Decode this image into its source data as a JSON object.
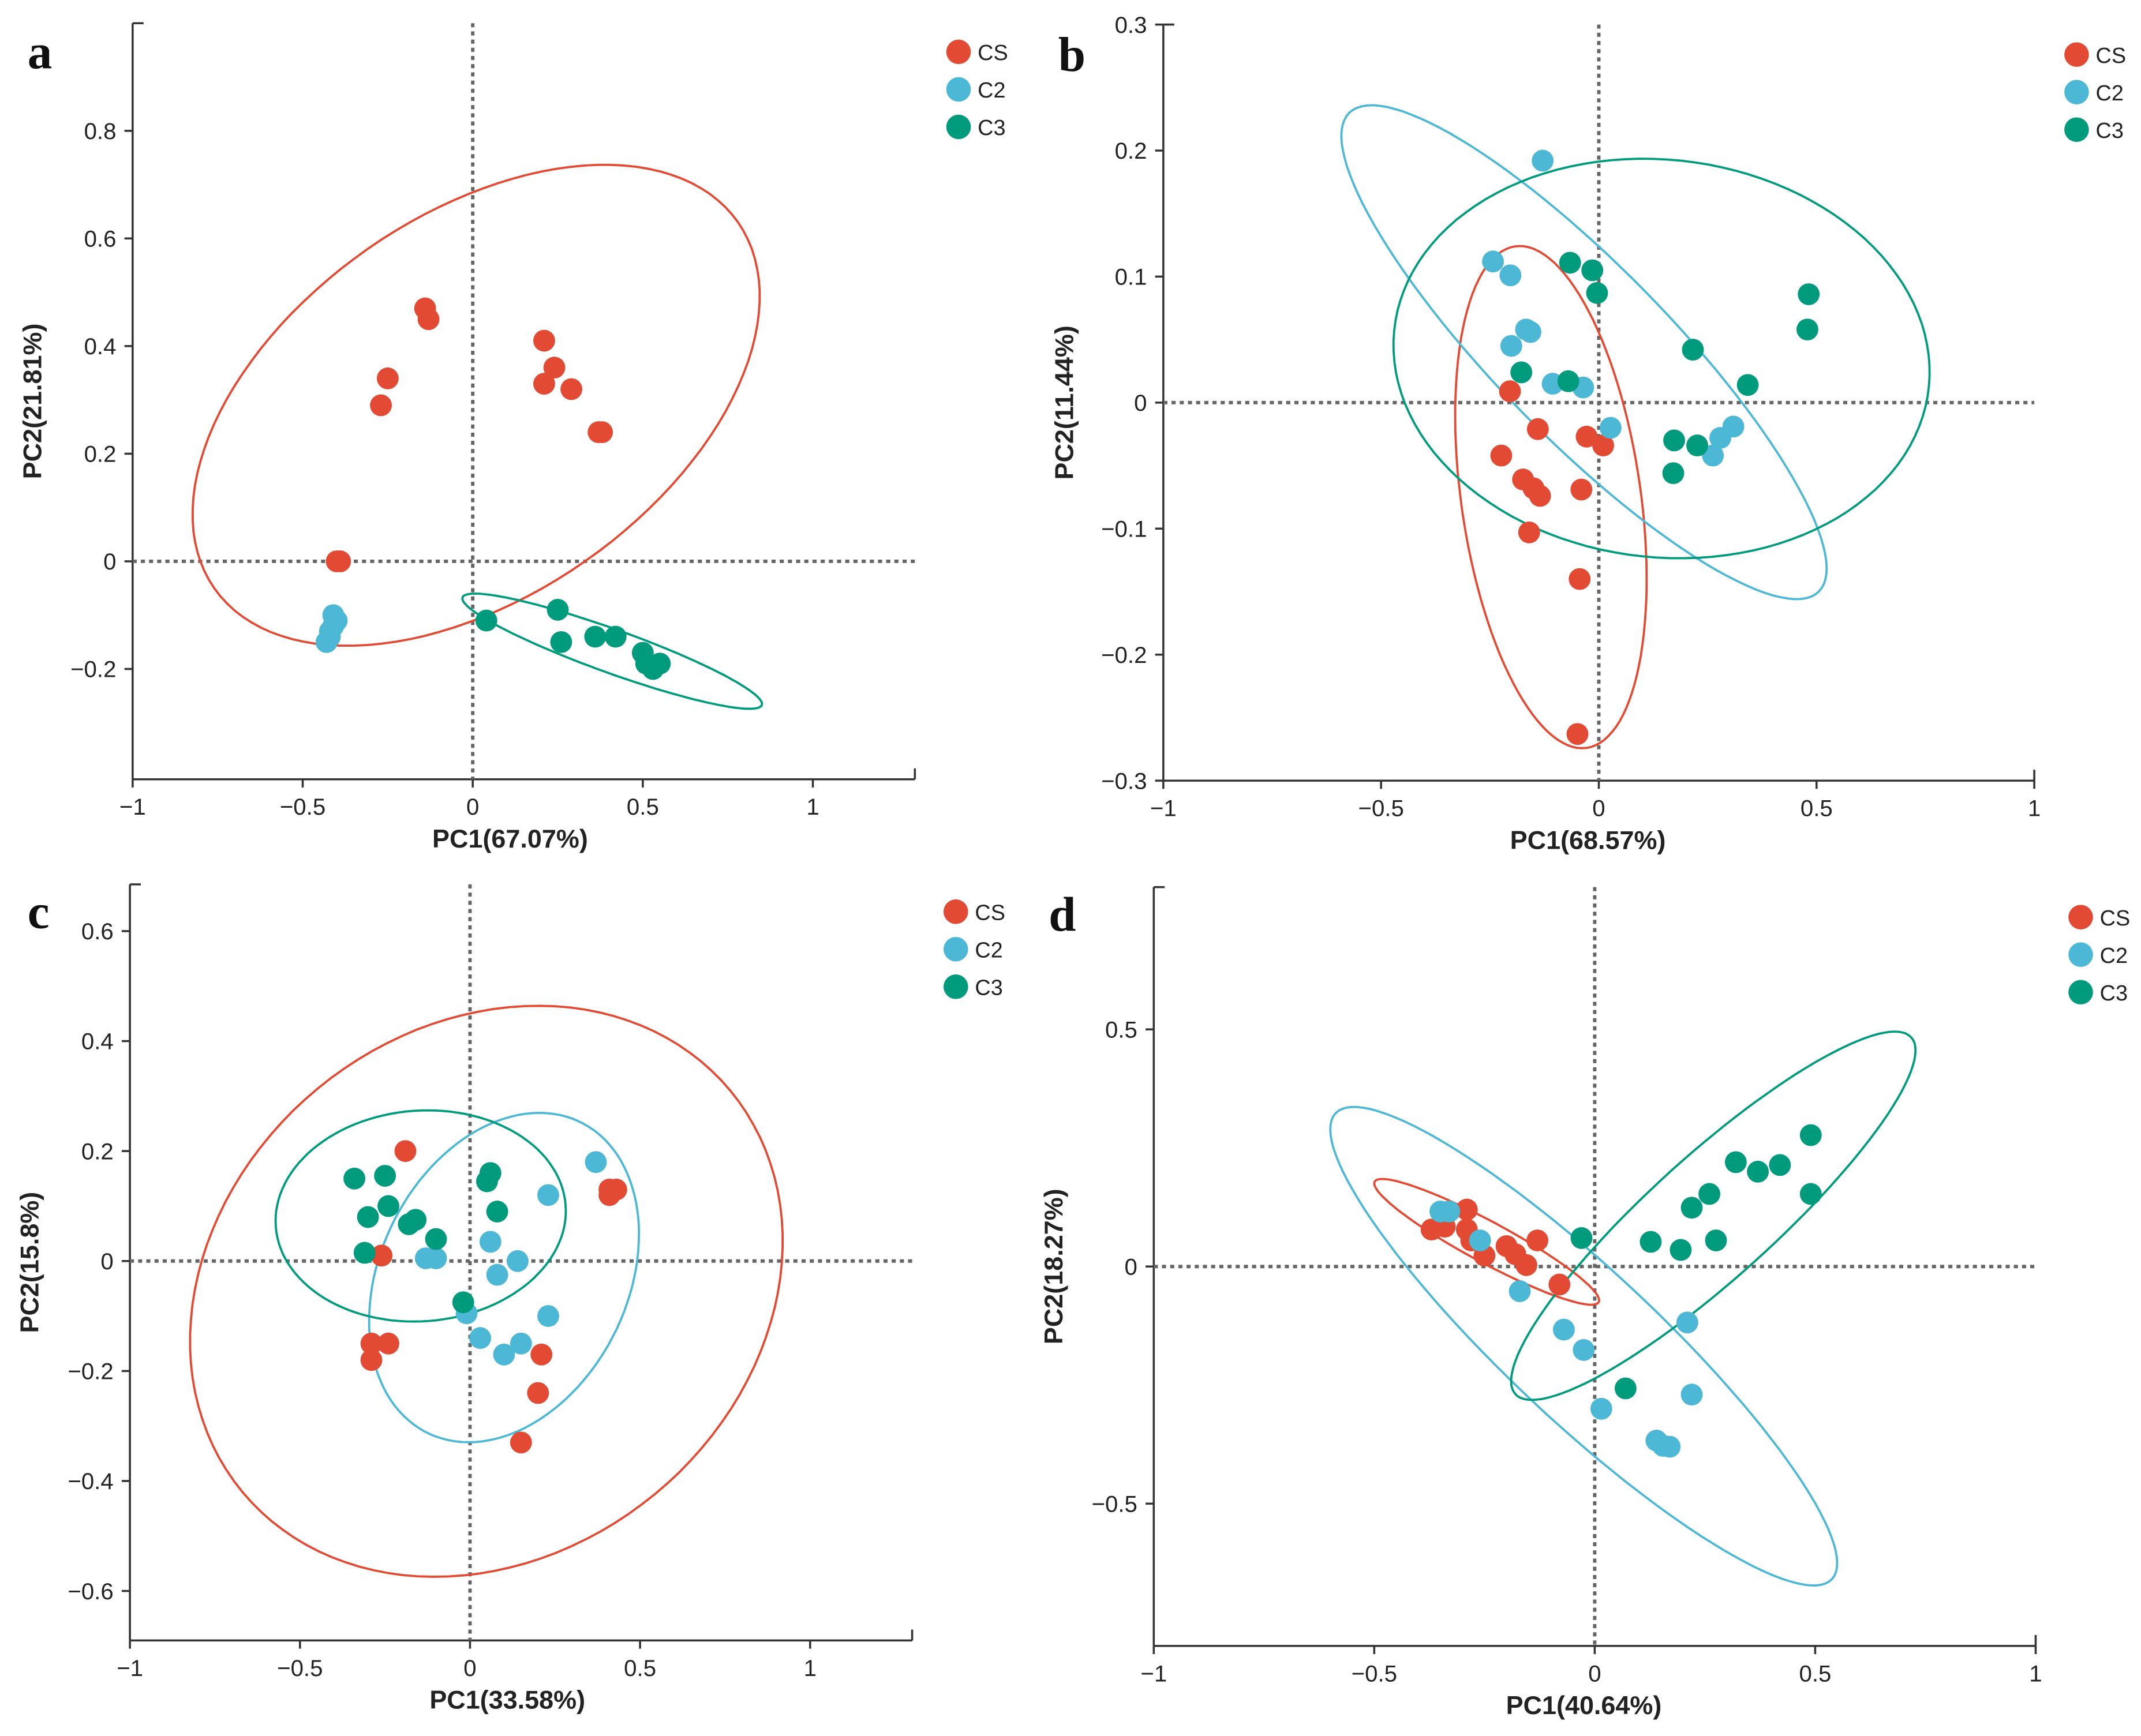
{
  "colors": {
    "CS": "#E34A33",
    "C2": "#4DB8D6",
    "C3": "#009B7D"
  },
  "chart_data": [
    {
      "type": "scatter",
      "panel_label": "a",
      "xlabel": "PC1(67.07%)",
      "ylabel": "PC2(21.81%)",
      "xlim": [
        -1,
        1.3
      ],
      "ylim": [
        -0.405,
        1.0
      ],
      "xticks": [
        -1,
        -0.5,
        0,
        0.5,
        1
      ],
      "xtick_labels": [
        "−1",
        "−0.5",
        "0",
        "0.5",
        "1"
      ],
      "yticks": [
        -0.2,
        0,
        0.2,
        0.4,
        0.6,
        0.8
      ],
      "ytick_labels": [
        "−0.2",
        "0",
        "0.2",
        "0.4",
        "0.6",
        "0.8"
      ],
      "legend": [
        "CS",
        "C2",
        "C3"
      ],
      "legend_position": "top-right",
      "series": [
        {
          "name": "CS",
          "points": [
            [
              -0.14,
              0.47
            ],
            [
              -0.13,
              0.45
            ],
            [
              -0.25,
              0.34
            ],
            [
              -0.27,
              0.29
            ],
            [
              0.21,
              0.41
            ],
            [
              0.24,
              0.36
            ],
            [
              0.21,
              0.33
            ],
            [
              0.29,
              0.32
            ],
            [
              0.37,
              0.24
            ],
            [
              0.38,
              0.24
            ],
            [
              -0.4,
              0.0
            ],
            [
              -0.39,
              0.0
            ]
          ],
          "ellipse": {
            "center": [
              0.01,
              0.29
            ],
            "u": [
              0.77,
              0.34
            ],
            "v": [
              0.32,
              -0.29
            ]
          }
        },
        {
          "name": "C2",
          "points": [
            [
              -0.41,
              -0.1
            ],
            [
              -0.41,
              -0.12
            ],
            [
              -0.42,
              -0.13
            ],
            [
              -0.42,
              -0.14
            ],
            [
              -0.43,
              -0.15
            ],
            [
              -0.4,
              -0.11
            ]
          ]
        },
        {
          "name": "C3",
          "points": [
            [
              0.04,
              -0.11
            ],
            [
              0.25,
              -0.09
            ],
            [
              0.26,
              -0.15
            ],
            [
              0.36,
              -0.14
            ],
            [
              0.42,
              -0.14
            ],
            [
              0.5,
              -0.17
            ],
            [
              0.51,
              -0.19
            ],
            [
              0.53,
              -0.2
            ],
            [
              0.55,
              -0.19
            ]
          ],
          "ellipse": {
            "center": [
              0.41,
              -0.167
            ],
            "u": [
              0.44,
              -0.1
            ],
            "v": [
              -0.022,
              -0.038
            ]
          }
        }
      ]
    },
    {
      "type": "scatter",
      "panel_label": "b",
      "xlabel": "PC1(68.57%)",
      "ylabel": "PC2(11.44%)",
      "xlim": [
        -1,
        1
      ],
      "ylim": [
        -0.3,
        0.3
      ],
      "xticks": [
        -1,
        -0.5,
        0,
        0.5,
        1
      ],
      "xtick_labels": [
        "−1",
        "−0.5",
        "0",
        "0.5",
        "1"
      ],
      "yticks": [
        -0.3,
        -0.2,
        -0.1,
        0,
        0.1,
        0.2,
        0.3
      ],
      "ytick_labels": [
        "−0.3",
        "−0.2",
        "−0.1",
        "0",
        "0.1",
        "0.2",
        "0.3"
      ],
      "legend": [
        "CS",
        "C2",
        "C3"
      ],
      "legend_position": "top-right",
      "series": [
        {
          "name": "CS",
          "points": [
            [
              -0.204,
              0.009
            ],
            [
              -0.14,
              -0.021
            ],
            [
              -0.028,
              -0.027
            ],
            [
              0.01,
              -0.034
            ],
            [
              -0.224,
              -0.042
            ],
            [
              -0.174,
              -0.061
            ],
            [
              -0.15,
              -0.068
            ],
            [
              -0.135,
              -0.074
            ],
            [
              -0.04,
              -0.069
            ],
            [
              -0.16,
              -0.103
            ],
            [
              -0.044,
              -0.14
            ],
            [
              -0.049,
              -0.263
            ]
          ],
          "ellipse": {
            "center": [
              -0.11,
              -0.075
            ],
            "u": [
              0.082,
              -0.199
            ],
            "v": [
              0.204,
              0.01
            ]
          }
        },
        {
          "name": "C2",
          "points": [
            [
              -0.129,
              0.192
            ],
            [
              -0.243,
              0.112
            ],
            [
              -0.203,
              0.101
            ],
            [
              -0.157,
              0.056
            ],
            [
              -0.167,
              0.058
            ],
            [
              -0.201,
              0.045
            ],
            [
              -0.106,
              0.015
            ],
            [
              -0.036,
              0.012
            ],
            [
              0.027,
              -0.02
            ],
            [
              0.309,
              -0.019
            ],
            [
              0.279,
              -0.028
            ],
            [
              0.262,
              -0.042
            ]
          ],
          "ellipse": {
            "center": [
              -0.034,
              0.04
            ],
            "u": [
              0.539,
              -0.19
            ],
            "v": [
              -0.141,
              -0.048
            ]
          }
        },
        {
          "name": "C3",
          "points": [
            [
              -0.066,
              0.111
            ],
            [
              -0.015,
              0.105
            ],
            [
              -0.004,
              0.087
            ],
            [
              0.482,
              0.086
            ],
            [
              0.479,
              0.058
            ],
            [
              0.216,
              0.042
            ],
            [
              0.342,
              0.014
            ],
            [
              -0.178,
              0.024
            ],
            [
              -0.07,
              0.017
            ],
            [
              0.173,
              -0.03
            ],
            [
              0.226,
              -0.034
            ],
            [
              0.171,
              -0.056
            ]
          ],
          "ellipse": {
            "center": [
              0.144,
              0.035
            ],
            "u": [
              0.614,
              -0.022
            ],
            "v": [
              -0.044,
              -0.157
            ]
          }
        }
      ]
    },
    {
      "type": "scatter",
      "panel_label": "c",
      "xlabel": "PC1(33.58%)",
      "ylabel": "PC2(15.8%)",
      "xlim": [
        -1,
        1.3
      ],
      "ylim": [
        -0.69,
        0.685
      ],
      "xticks": [
        -1,
        -0.5,
        0,
        0.5,
        1
      ],
      "xtick_labels": [
        "−1",
        "−0.5",
        "0",
        "0.5",
        "1"
      ],
      "yticks": [
        -0.6,
        -0.4,
        -0.2,
        0,
        0.2,
        0.4,
        0.6
      ],
      "ytick_labels": [
        "−0.6",
        "−0.4",
        "−0.2",
        "0",
        "0.2",
        "0.4",
        "0.6"
      ],
      "legend": [
        "CS",
        "C2",
        "C3"
      ],
      "legend_position": "top-right",
      "series": [
        {
          "name": "CS",
          "points": [
            [
              -0.19,
              0.2
            ],
            [
              -0.26,
              0.01
            ],
            [
              -0.29,
              -0.15
            ],
            [
              -0.29,
              -0.18
            ],
            [
              -0.24,
              -0.15
            ],
            [
              0.41,
              0.13
            ],
            [
              0.41,
              0.12
            ],
            [
              0.43,
              0.13
            ],
            [
              0.21,
              -0.17
            ],
            [
              0.2,
              -0.24
            ],
            [
              0.15,
              -0.33
            ]
          ],
          "ellipse": {
            "center": [
              0.048,
              -0.055
            ],
            "u": [
              0.835,
              0.233
            ],
            "v": [
              0.249,
              -0.464
            ]
          }
        },
        {
          "name": "C2",
          "points": [
            [
              0.37,
              0.18
            ],
            [
              0.23,
              0.12
            ],
            [
              0.06,
              0.035
            ],
            [
              0.14,
              0.0
            ],
            [
              0.08,
              -0.025
            ],
            [
              -0.13,
              0.005
            ],
            [
              -0.1,
              0.005
            ],
            [
              -0.01,
              -0.095
            ],
            [
              0.03,
              -0.14
            ],
            [
              0.1,
              -0.17
            ],
            [
              0.15,
              -0.15
            ],
            [
              0.23,
              -0.1
            ]
          ],
          "ellipse": {
            "center": [
              0.1,
              -0.03
            ],
            "u": [
              0.181,
              0.293
            ],
            "v": [
              0.353,
              -0.062
            ]
          }
        },
        {
          "name": "C3",
          "points": [
            [
              -0.34,
              0.15
            ],
            [
              -0.25,
              0.155
            ],
            [
              -0.3,
              0.08
            ],
            [
              -0.24,
              0.1
            ],
            [
              -0.18,
              0.067
            ],
            [
              -0.16,
              0.075
            ],
            [
              -0.1,
              0.04
            ],
            [
              -0.31,
              0.015
            ],
            [
              0.05,
              0.145
            ],
            [
              0.06,
              0.16
            ],
            [
              0.08,
              0.09
            ],
            [
              -0.02,
              -0.075
            ]
          ],
          "ellipse": {
            "center": [
              -0.145,
              0.082
            ],
            "u": [
              0.426,
              0.02
            ],
            "v": [
              0.024,
              -0.191
            ]
          }
        }
      ]
    },
    {
      "type": "scatter",
      "panel_label": "d",
      "xlabel": "PC1(40.64%)",
      "ylabel": "PC2(18.27%)",
      "xlim": [
        -1,
        1
      ],
      "ylim": [
        -0.8,
        0.8
      ],
      "xticks": [
        -1,
        -0.5,
        0,
        0.5,
        1
      ],
      "xtick_labels": [
        "−1",
        "−0.5",
        "0",
        "0.5",
        "1"
      ],
      "yticks": [
        -0.5,
        0,
        0.5
      ],
      "ytick_labels": [
        "−0.5",
        "0",
        "0.5"
      ],
      "legend": [
        "CS",
        "C2",
        "C3"
      ],
      "legend_position": "top-right",
      "series": [
        {
          "name": "CS",
          "points": [
            [
              -0.37,
              0.078
            ],
            [
              -0.34,
              0.084
            ],
            [
              -0.29,
              0.12
            ],
            [
              -0.29,
              0.078
            ],
            [
              -0.28,
              0.055
            ],
            [
              -0.25,
              0.023
            ],
            [
              -0.2,
              0.043
            ],
            [
              -0.18,
              0.026
            ],
            [
              -0.155,
              0.003
            ],
            [
              -0.13,
              0.055
            ],
            [
              -0.08,
              -0.038
            ]
          ],
          "ellipse": {
            "center": [
              -0.245,
              0.052
            ],
            "u": [
              0.254,
              -0.127
            ],
            "v": [
              -0.022,
              -0.038
            ]
          }
        },
        {
          "name": "C2",
          "points": [
            [
              -0.35,
              0.116
            ],
            [
              -0.33,
              0.116
            ],
            [
              -0.26,
              0.055
            ],
            [
              -0.17,
              -0.052
            ],
            [
              -0.07,
              -0.133
            ],
            [
              -0.025,
              -0.176
            ],
            [
              0.015,
              -0.3
            ],
            [
              0.21,
              -0.118
            ],
            [
              0.22,
              -0.27
            ],
            [
              0.14,
              -0.367
            ],
            [
              0.155,
              -0.378
            ],
            [
              0.17,
              -0.38
            ]
          ],
          "ellipse": {
            "center": [
              -0.025,
              -0.168
            ],
            "u": [
              0.563,
              -0.491
            ],
            "v": [
              -0.116,
              -0.116
            ]
          }
        },
        {
          "name": "C3",
          "points": [
            [
              -0.03,
              0.06
            ],
            [
              0.07,
              -0.257
            ],
            [
              0.127,
              0.052
            ],
            [
              0.195,
              0.035
            ],
            [
              0.22,
              0.124
            ],
            [
              0.26,
              0.153
            ],
            [
              0.275,
              0.055
            ],
            [
              0.32,
              0.22
            ],
            [
              0.37,
              0.2
            ],
            [
              0.42,
              0.214
            ],
            [
              0.49,
              0.277
            ],
            [
              0.49,
              0.153
            ]
          ],
          "ellipse": {
            "center": [
              0.269,
              0.107
            ],
            "u": [
              0.449,
              0.376
            ],
            "v": [
              0.093,
              -0.097
            ]
          }
        }
      ]
    }
  ]
}
